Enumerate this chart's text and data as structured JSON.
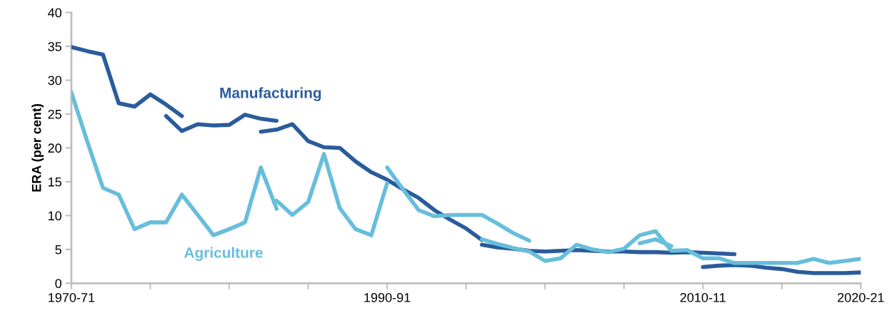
{
  "chart_data": {
    "type": "line",
    "ylabel": "ERA (per cent)",
    "categories": [
      "1970-71",
      null,
      null,
      null,
      null,
      null,
      null,
      null,
      null,
      null,
      null,
      null,
      null,
      null,
      null,
      null,
      null,
      null,
      null,
      null,
      "1990-91",
      null,
      null,
      null,
      null,
      null,
      null,
      null,
      null,
      null,
      null,
      null,
      null,
      null,
      null,
      null,
      null,
      null,
      null,
      null,
      "2010-11",
      null,
      null,
      null,
      null,
      null,
      null,
      null,
      null,
      null,
      "2020-21"
    ],
    "ylim": [
      0,
      40
    ],
    "yticks": [
      0,
      5,
      10,
      15,
      20,
      25,
      30,
      35,
      40
    ],
    "grid": false,
    "legend": false,
    "marker": "none",
    "line_style": "solid",
    "series": [
      {
        "color": "#2a5c9c",
        "values": [
          34.9,
          34.3,
          33.8,
          26.6,
          26.1,
          27.9,
          26.4,
          24.7,
          null,
          null,
          null,
          null,
          null,
          null,
          null,
          null,
          null,
          null,
          null,
          null,
          null,
          null,
          null,
          null,
          null,
          null,
          null,
          null,
          null,
          null,
          null,
          null,
          null,
          null,
          null,
          null,
          null,
          null,
          null,
          null,
          null,
          null,
          null,
          null,
          null,
          null,
          null,
          null,
          null,
          null,
          null
        ]
      },
      {
        "name": "Manufacturing",
        "color": "#2a5c9c",
        "values": [
          null,
          null,
          null,
          null,
          null,
          null,
          24.7,
          22.5,
          23.5,
          23.3,
          23.4,
          24.9,
          24.3,
          24.0,
          null,
          null,
          null,
          null,
          null,
          null,
          null,
          null,
          null,
          null,
          null,
          null,
          null,
          null,
          null,
          null,
          null,
          null,
          null,
          null,
          null,
          null,
          null,
          null,
          null,
          null,
          null,
          null,
          null,
          null,
          null,
          null,
          null,
          null,
          null,
          null,
          null
        ]
      },
      {
        "color": "#2a5c9c",
        "values": [
          null,
          null,
          null,
          null,
          null,
          null,
          null,
          null,
          null,
          null,
          null,
          null,
          22.4,
          22.7,
          23.5,
          21.0,
          20.1,
          20.0,
          18.0,
          16.4,
          15.3,
          13.9,
          12.6,
          10.8,
          9.4,
          8.1,
          6.4,
          null,
          null,
          null,
          null,
          null,
          null,
          null,
          null,
          null,
          null,
          null,
          null,
          null,
          null,
          null,
          null,
          null,
          null,
          null,
          null,
          null,
          null,
          null,
          null
        ]
      },
      {
        "color": "#2a5c9c",
        "values": [
          null,
          null,
          null,
          null,
          null,
          null,
          null,
          null,
          null,
          null,
          null,
          null,
          null,
          null,
          null,
          null,
          null,
          null,
          null,
          null,
          null,
          null,
          null,
          null,
          null,
          null,
          5.7,
          5.3,
          5.1,
          4.8,
          4.7,
          4.8,
          4.9,
          4.8,
          4.7,
          4.7,
          4.6,
          4.6,
          4.5,
          4.6,
          4.5,
          4.4,
          4.3,
          null,
          null,
          null,
          null,
          null,
          null,
          null,
          null
        ]
      },
      {
        "color": "#2a5c9c",
        "values": [
          null,
          null,
          null,
          null,
          null,
          null,
          null,
          null,
          null,
          null,
          null,
          null,
          null,
          null,
          null,
          null,
          null,
          null,
          null,
          null,
          null,
          null,
          null,
          null,
          null,
          null,
          null,
          null,
          null,
          null,
          null,
          null,
          null,
          null,
          null,
          null,
          null,
          null,
          null,
          null,
          2.4,
          2.6,
          2.7,
          2.6,
          2.3,
          2.1,
          1.7,
          1.5,
          1.5,
          1.5,
          1.6
        ]
      },
      {
        "name": "Agriculture",
        "color": "#67bedb",
        "values": [
          28.2,
          21.0,
          14.1,
          13.1,
          8.0,
          9.0,
          9.0,
          13.1,
          10.1,
          7.1,
          8.0,
          9.0,
          17.1,
          11.0,
          null,
          null,
          null,
          null,
          null,
          null,
          null,
          null,
          null,
          null,
          null,
          null,
          null,
          null,
          null,
          null,
          null,
          null,
          null,
          null,
          null,
          null,
          null,
          null,
          null,
          null,
          null,
          null,
          null,
          null,
          null,
          null,
          null,
          null,
          null,
          null,
          null
        ]
      },
      {
        "color": "#67bedb",
        "values": [
          null,
          null,
          null,
          null,
          null,
          null,
          null,
          null,
          null,
          null,
          null,
          null,
          null,
          12.2,
          10.1,
          12.0,
          19.1,
          11.1,
          8.0,
          7.1,
          14.8,
          null,
          null,
          null,
          null,
          null,
          null,
          null,
          null,
          null,
          null,
          null,
          null,
          null,
          null,
          null,
          null,
          null,
          null,
          null,
          null,
          null,
          null,
          null,
          null,
          null,
          null,
          null,
          null,
          null,
          null
        ]
      },
      {
        "color": "#67bedb",
        "values": [
          null,
          null,
          null,
          null,
          null,
          null,
          null,
          null,
          null,
          null,
          null,
          null,
          null,
          null,
          null,
          null,
          null,
          null,
          null,
          null,
          17.1,
          13.9,
          10.8,
          9.9,
          10.1,
          10.1,
          10.1,
          8.8,
          7.4,
          6.3,
          null,
          null,
          null,
          null,
          null,
          null,
          null,
          null,
          null,
          null,
          null,
          null,
          null,
          null,
          null,
          null,
          null,
          null,
          null,
          null,
          null
        ]
      },
      {
        "color": "#67bedb",
        "values": [
          null,
          null,
          null,
          null,
          null,
          null,
          null,
          null,
          null,
          null,
          null,
          null,
          null,
          null,
          null,
          null,
          null,
          null,
          null,
          null,
          null,
          null,
          null,
          null,
          null,
          null,
          6.5,
          5.8,
          5.2,
          4.7,
          3.3,
          3.7,
          5.7,
          5.0,
          4.6,
          5.1,
          7.1,
          7.7,
          4.8,
          4.9,
          3.7,
          3.7,
          3.0,
          3.0,
          3.0,
          3.0,
          3.0,
          3.6,
          3.0,
          3.3,
          3.6
        ]
      },
      {
        "color": "#67bedb",
        "values": [
          null,
          null,
          null,
          null,
          null,
          null,
          null,
          null,
          null,
          null,
          null,
          null,
          null,
          null,
          null,
          null,
          null,
          null,
          null,
          null,
          null,
          null,
          null,
          null,
          null,
          null,
          null,
          null,
          null,
          null,
          null,
          null,
          null,
          null,
          null,
          null,
          5.9,
          6.5,
          5.5,
          null,
          null,
          null,
          null,
          null,
          null,
          null,
          null,
          null,
          null,
          null,
          null
        ]
      }
    ]
  }
}
